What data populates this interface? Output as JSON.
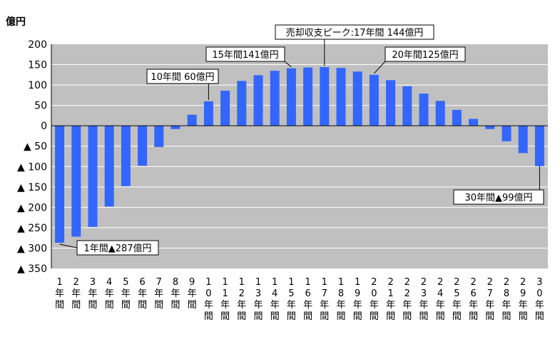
{
  "chart_data": {
    "type": "bar",
    "ylabel": "億円",
    "ylim": [
      -350,
      200
    ],
    "yticks": [
      200,
      150,
      100,
      50,
      0,
      -50,
      -100,
      -150,
      -200,
      -250,
      -300,
      -350
    ],
    "ytick_labels": [
      "200",
      "150",
      "100",
      "50",
      "0",
      "▲ 50",
      "▲ 100",
      "▲ 150",
      "▲ 200",
      "▲ 250",
      "▲ 300",
      "▲ 350"
    ],
    "categories": [
      "1年間",
      "2年間",
      "3年間",
      "4年間",
      "5年間",
      "6年間",
      "7年間",
      "8年間",
      "9年間",
      "10年間",
      "11年間",
      "12年間",
      "13年間",
      "14年間",
      "15年間",
      "16年間",
      "17年間",
      "18年間",
      "19年間",
      "20年間",
      "21年間",
      "22年間",
      "23年間",
      "24年間",
      "25年間",
      "26年間",
      "27年間",
      "28年間",
      "29年間",
      "30年間"
    ],
    "values": [
      -287,
      -272,
      -248,
      -198,
      -148,
      -98,
      -52,
      -8,
      27,
      60,
      86,
      110,
      124,
      135,
      141,
      143,
      144,
      142,
      133,
      125,
      112,
      97,
      79,
      61,
      39,
      17,
      -8,
      -38,
      -67,
      -99
    ],
    "grid": true,
    "colors": {
      "bar": "#3366FF",
      "plot_bg": "#C0C0C0",
      "grid": "#FFFFFF"
    },
    "annotations": [
      {
        "text": "1年間▲287億円",
        "index": 0
      },
      {
        "text": "10年間 60億円",
        "index": 9
      },
      {
        "text": "15年間141億円",
        "index": 14
      },
      {
        "text": "売却収支ピーク:17年間 144億円",
        "index": 16
      },
      {
        "text": "20年間125億円",
        "index": 19
      },
      {
        "text": "30年間▲99億円",
        "index": 29
      }
    ]
  }
}
